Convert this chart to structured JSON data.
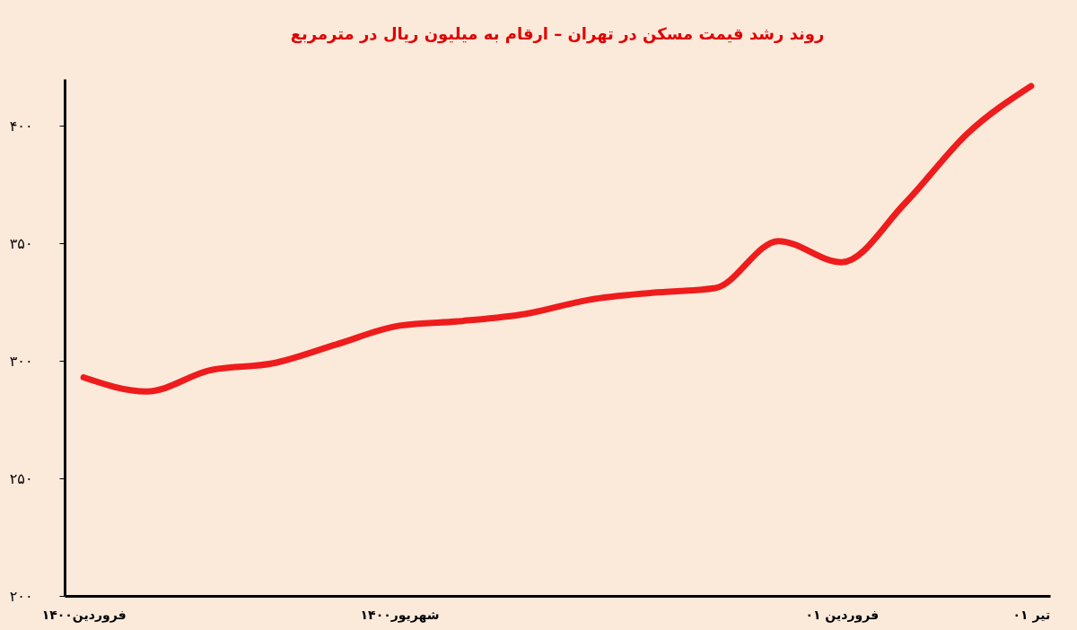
{
  "chart_data": {
    "type": "line",
    "title": "روند رشد قیمت مسکن در تهران – ارقام به میلیون ریال در مترمربع",
    "categories": [
      "فروردین۱۴۰۰",
      null,
      null,
      null,
      null,
      "شهریور۱۴۰۰",
      null,
      null,
      null,
      null,
      null,
      null,
      "فروردین ۰۱",
      null,
      null,
      "تیر ۰۱"
    ],
    "series": [
      {
        "color": "#ee1c1c",
        "values": [
          293,
          287,
          296,
          299,
          307,
          315,
          317,
          320,
          326,
          329,
          331,
          351,
          342,
          367,
          397,
          417
        ]
      }
    ],
    "ylim": [
      200,
      420
    ],
    "yticks": [
      {
        "value": 200,
        "label": "۲۰۰"
      },
      {
        "value": 250,
        "label": "۲۵۰"
      },
      {
        "value": 300,
        "label": "۳۰۰"
      },
      {
        "value": 350,
        "label": "۳۵۰"
      },
      {
        "value": 400,
        "label": "۴۰۰"
      }
    ],
    "grid": false,
    "marker": "none",
    "line_style": "solid"
  }
}
